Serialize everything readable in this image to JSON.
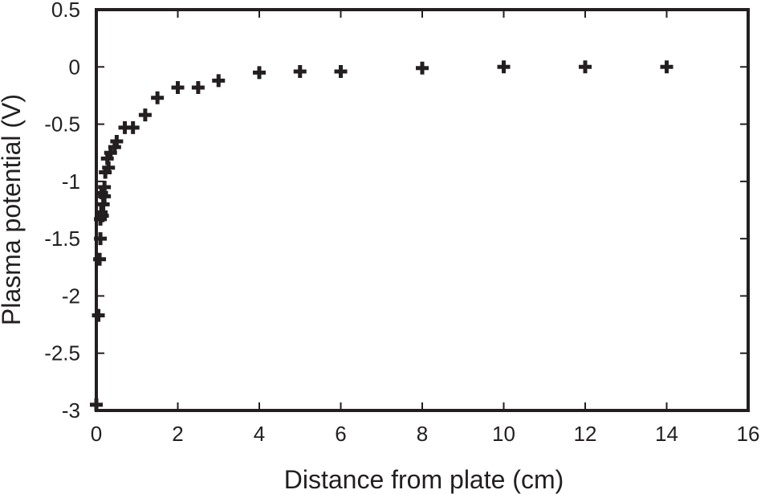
{
  "chart_data": {
    "type": "scatter",
    "xlabel": "Distance from plate (cm)",
    "ylabel": "Plasma potential (V)",
    "xlim": [
      0,
      16
    ],
    "ylim": [
      -3,
      0.5
    ],
    "xticks": [
      "0",
      "2",
      "4",
      "6",
      "8",
      "10",
      "12",
      "14",
      "16"
    ],
    "yticks": [
      "0.5",
      "0",
      "-0.5",
      "-1",
      "-1.5",
      "-2",
      "-2.5",
      "-3"
    ],
    "grid": false,
    "marker": "plus",
    "color": "#231f20",
    "points": [
      {
        "x": 0.0,
        "y": -2.95
      },
      {
        "x": 0.05,
        "y": -2.17
      },
      {
        "x": 0.08,
        "y": -1.68
      },
      {
        "x": 0.1,
        "y": -1.5
      },
      {
        "x": 0.1,
        "y": -1.33
      },
      {
        "x": 0.12,
        "y": -1.27
      },
      {
        "x": 0.15,
        "y": -1.3
      },
      {
        "x": 0.13,
        "y": -1.1
      },
      {
        "x": 0.17,
        "y": -1.2
      },
      {
        "x": 0.2,
        "y": -1.05
      },
      {
        "x": 0.2,
        "y": -1.13
      },
      {
        "x": 0.22,
        "y": -0.92
      },
      {
        "x": 0.3,
        "y": -0.88
      },
      {
        "x": 0.27,
        "y": -0.8
      },
      {
        "x": 0.35,
        "y": -0.75
      },
      {
        "x": 0.45,
        "y": -0.7
      },
      {
        "x": 0.5,
        "y": -0.65
      },
      {
        "x": 0.7,
        "y": -0.53
      },
      {
        "x": 0.9,
        "y": -0.53
      },
      {
        "x": 1.2,
        "y": -0.42
      },
      {
        "x": 1.5,
        "y": -0.27
      },
      {
        "x": 2.0,
        "y": -0.18
      },
      {
        "x": 2.5,
        "y": -0.18
      },
      {
        "x": 3.0,
        "y": -0.12
      },
      {
        "x": 4.0,
        "y": -0.05
      },
      {
        "x": 5.0,
        "y": -0.04
      },
      {
        "x": 6.0,
        "y": -0.04
      },
      {
        "x": 8.0,
        "y": -0.01
      },
      {
        "x": 10.0,
        "y": 0.0
      },
      {
        "x": 12.0,
        "y": 0.0
      },
      {
        "x": 14.0,
        "y": 0.0
      }
    ]
  }
}
